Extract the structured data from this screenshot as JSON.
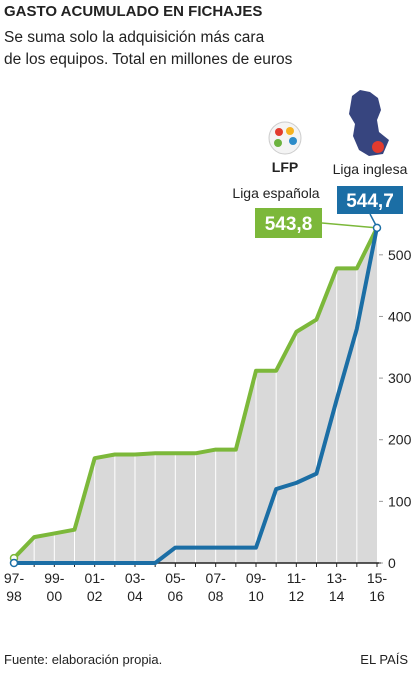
{
  "chart_data": {
    "type": "line",
    "title": "GASTO ACUMULADO EN FICHAJES",
    "subtitle": [
      "Se suma solo la adquisición más cara",
      "de los equipos. Total en millones de euros"
    ],
    "categories": [
      "97-\n98",
      null,
      "99-\n00",
      null,
      "01-\n02",
      null,
      "03-\n04",
      null,
      "05-\n06",
      null,
      "07-\n08",
      null,
      "09-\n10",
      null,
      "11-\n12",
      null,
      "13-\n14",
      null,
      "15-\n16"
    ],
    "series": [
      {
        "name": "Liga española",
        "color": "#7cb83a",
        "values": [
          8,
          42,
          48,
          54,
          170,
          176,
          176,
          178,
          178,
          178,
          184,
          184,
          312,
          312,
          375,
          395,
          478,
          478,
          543.8
        ],
        "value_labels": [
          null,
          null,
          null,
          null,
          null,
          null,
          null,
          null,
          null,
          null,
          null,
          null,
          null,
          null,
          null,
          null,
          null,
          null,
          "543,8"
        ]
      },
      {
        "name": "Liga inglesa",
        "color": "#1b6ea5",
        "values": [
          0,
          0,
          0,
          0,
          0,
          0,
          0,
          0,
          25,
          25,
          25,
          25,
          25,
          120,
          130,
          145,
          265,
          380,
          544.7
        ],
        "value_labels": [
          null,
          null,
          null,
          null,
          null,
          null,
          null,
          null,
          null,
          null,
          null,
          null,
          null,
          null,
          null,
          null,
          null,
          null,
          "544,7"
        ]
      }
    ],
    "logo_text": "LFP",
    "ylim": [
      0,
      550
    ],
    "yticks": [
      0,
      100,
      200,
      300,
      400,
      500
    ],
    "area_color": "#d9d9d9",
    "source": "Fuente: elaboración propia.",
    "publisher": "EL PAÍS"
  }
}
